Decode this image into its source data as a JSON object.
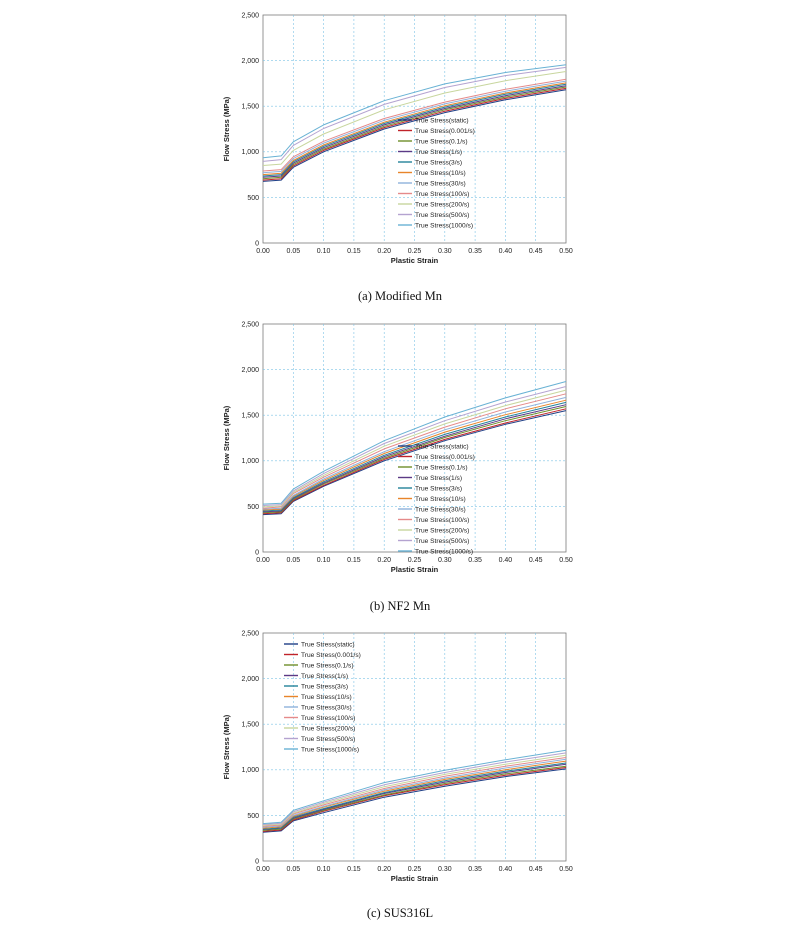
{
  "colors": [
    "#1f3f86",
    "#c0232a",
    "#6f8f2a",
    "#5c3a86",
    "#23829a",
    "#e8852a",
    "#8fb2dc",
    "#e58a8a",
    "#c8d69e",
    "#b4a3d0",
    "#69b2d4"
  ],
  "chart_data": [
    {
      "type": "line",
      "caption": "(a)  Modified  Mn",
      "title": "",
      "xlabel": "Plastic Strain",
      "ylabel": "Flow Stress (MPa)",
      "xlim": [
        0,
        0.5
      ],
      "ylim": [
        0,
        2500
      ],
      "xticks": [
        "0.00",
        "0.05",
        "0.10",
        "0.15",
        "0.20",
        "0.25",
        "0.30",
        "0.35",
        "0.40",
        "0.45",
        "0.50"
      ],
      "yticks": [
        "0",
        "500",
        "1,000",
        "1,500",
        "2,000",
        "2,500"
      ],
      "grid": true,
      "legend_position": "right",
      "x": [
        0,
        0.03,
        0.05,
        0.1,
        0.2,
        0.3,
        0.4,
        0.5
      ],
      "series": [
        {
          "name": "True Stress(static)",
          "values": [
            675,
            690,
            830,
            1000,
            1250,
            1430,
            1570,
            1680
          ]
        },
        {
          "name": "True Stress(0.001/s)",
          "values": [
            690,
            705,
            845,
            1015,
            1265,
            1445,
            1585,
            1695
          ]
        },
        {
          "name": "True Stress(0.1/s)",
          "values": [
            705,
            720,
            860,
            1030,
            1280,
            1460,
            1600,
            1710
          ]
        },
        {
          "name": "True Stress(1/s)",
          "values": [
            720,
            735,
            875,
            1045,
            1295,
            1475,
            1615,
            1725
          ]
        },
        {
          "name": "True Stress(3/s)",
          "values": [
            735,
            750,
            890,
            1060,
            1310,
            1490,
            1630,
            1740
          ]
        },
        {
          "name": "True Stress(10/s)",
          "values": [
            750,
            765,
            905,
            1075,
            1325,
            1505,
            1645,
            1755
          ]
        },
        {
          "name": "True Stress(30/s)",
          "values": [
            770,
            785,
            925,
            1095,
            1345,
            1525,
            1665,
            1775
          ]
        },
        {
          "name": "True Stress(100/s)",
          "values": [
            790,
            805,
            945,
            1115,
            1365,
            1545,
            1685,
            1795
          ]
        },
        {
          "name": "True Stress(200/s)",
          "values": [
            850,
            865,
            1015,
            1195,
            1460,
            1645,
            1780,
            1880
          ]
        },
        {
          "name": "True Stress(500/s)",
          "values": [
            895,
            915,
            1070,
            1255,
            1520,
            1705,
            1835,
            1925
          ]
        },
        {
          "name": "True Stress(1000/s)",
          "values": [
            935,
            955,
            1110,
            1295,
            1560,
            1745,
            1870,
            1955
          ]
        }
      ]
    },
    {
      "type": "line",
      "caption": "(b)  NF2  Mn",
      "title": "",
      "xlabel": "Plastic Strain",
      "ylabel": "Flow Stress (MPa)",
      "xlim": [
        0,
        0.5
      ],
      "ylim": [
        0,
        2500
      ],
      "xticks": [
        "0.00",
        "0.05",
        "0.10",
        "0.15",
        "0.20",
        "0.25",
        "0.30",
        "0.35",
        "0.40",
        "0.45",
        "0.50"
      ],
      "yticks": [
        "0",
        "500",
        "1,000",
        "1,500",
        "2,000",
        "2,500"
      ],
      "grid": true,
      "legend_position": "right",
      "x": [
        0,
        0.03,
        0.05,
        0.1,
        0.2,
        0.3,
        0.4,
        0.5
      ],
      "series": [
        {
          "name": "True Stress(static)",
          "values": [
            410,
            420,
            555,
            720,
            1000,
            1220,
            1400,
            1550
          ]
        },
        {
          "name": "True Stress(0.001/s)",
          "values": [
            420,
            430,
            565,
            730,
            1015,
            1235,
            1415,
            1570
          ]
        },
        {
          "name": "True Stress(0.1/s)",
          "values": [
            430,
            440,
            575,
            745,
            1030,
            1255,
            1440,
            1595
          ]
        },
        {
          "name": "True Stress(1/s)",
          "values": [
            440,
            450,
            585,
            755,
            1045,
            1270,
            1460,
            1615
          ]
        },
        {
          "name": "True Stress(3/s)",
          "values": [
            450,
            460,
            595,
            770,
            1060,
            1290,
            1480,
            1640
          ]
        },
        {
          "name": "True Stress(10/s)",
          "values": [
            460,
            470,
            610,
            785,
            1080,
            1315,
            1505,
            1665
          ]
        },
        {
          "name": "True Stress(30/s)",
          "values": [
            470,
            480,
            620,
            800,
            1100,
            1340,
            1535,
            1695
          ]
        },
        {
          "name": "True Stress(100/s)",
          "values": [
            480,
            495,
            640,
            820,
            1130,
            1370,
            1570,
            1735
          ]
        },
        {
          "name": "True Stress(200/s)",
          "values": [
            495,
            505,
            655,
            840,
            1160,
            1405,
            1605,
            1775
          ]
        },
        {
          "name": "True Stress(500/s)",
          "values": [
            510,
            520,
            670,
            860,
            1190,
            1440,
            1645,
            1815
          ]
        },
        {
          "name": "True Stress(1000/s)",
          "values": [
            525,
            535,
            690,
            885,
            1220,
            1480,
            1690,
            1870
          ]
        }
      ]
    },
    {
      "type": "line",
      "caption": "(c)  SUS316L",
      "title": "",
      "xlabel": "Plastic Strain",
      "ylabel": "Flow Stress (MPa)",
      "xlim": [
        0,
        0.5
      ],
      "ylim": [
        0,
        2500
      ],
      "xticks": [
        "0.00",
        "0.05",
        "0.10",
        "0.15",
        "0.20",
        "0.25",
        "0.30",
        "0.35",
        "0.40",
        "0.45",
        "0.50"
      ],
      "yticks": [
        "0",
        "500",
        "1,000",
        "1,500",
        "2,000",
        "2,500"
      ],
      "grid": true,
      "legend_position": "top-left",
      "x": [
        0,
        0.03,
        0.05,
        0.1,
        0.2,
        0.3,
        0.4,
        0.5
      ],
      "series": [
        {
          "name": "True Stress(static)",
          "values": [
            315,
            330,
            440,
            530,
            700,
            820,
            925,
            1010
          ]
        },
        {
          "name": "True Stress(0.001/s)",
          "values": [
            325,
            340,
            450,
            545,
            715,
            835,
            940,
            1025
          ]
        },
        {
          "name": "True Stress(0.1/s)",
          "values": [
            335,
            350,
            460,
            555,
            725,
            850,
            955,
            1040
          ]
        },
        {
          "name": "True Stress(1/s)",
          "values": [
            345,
            360,
            470,
            565,
            740,
            865,
            970,
            1060
          ]
        },
        {
          "name": "True Stress(3/s)",
          "values": [
            350,
            365,
            480,
            575,
            750,
            880,
            985,
            1075
          ]
        },
        {
          "name": "True Stress(10/s)",
          "values": [
            360,
            375,
            490,
            590,
            765,
            895,
            1000,
            1095
          ]
        },
        {
          "name": "True Stress(30/s)",
          "values": [
            370,
            385,
            500,
            600,
            780,
            910,
            1020,
            1115
          ]
        },
        {
          "name": "True Stress(100/s)",
          "values": [
            380,
            395,
            515,
            615,
            795,
            930,
            1040,
            1135
          ]
        },
        {
          "name": "True Stress(200/s)",
          "values": [
            390,
            405,
            525,
            630,
            815,
            950,
            1060,
            1160
          ]
        },
        {
          "name": "True Stress(500/s)",
          "values": [
            400,
            415,
            540,
            645,
            835,
            970,
            1085,
            1185
          ]
        },
        {
          "name": "True Stress(1000/s)",
          "values": [
            410,
            425,
            555,
            660,
            860,
            995,
            1110,
            1215
          ]
        }
      ]
    }
  ]
}
